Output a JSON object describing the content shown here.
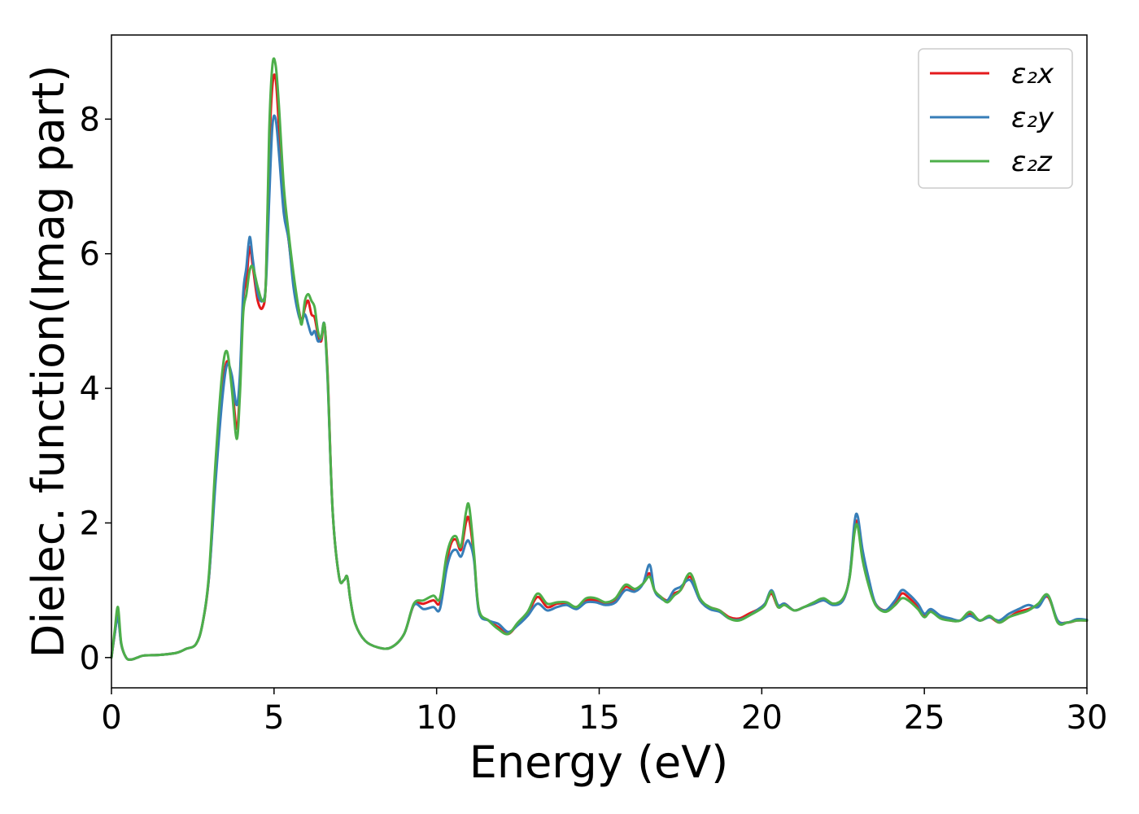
{
  "chart_data": {
    "type": "line",
    "title": "",
    "xlabel": "Energy (eV)",
    "ylabel": "Dielec. function(Imag part)",
    "xlim": [
      0,
      30
    ],
    "ylim": [
      -0.45,
      9.25
    ],
    "xticks": [
      0,
      5,
      10,
      15,
      20,
      25,
      30
    ],
    "yticks": [
      0,
      2,
      4,
      6,
      8
    ],
    "grid": false,
    "legend_position": "top-right",
    "series": [
      {
        "name": "ε₂x",
        "color": "#e41a1c",
        "x": [
          0,
          0.1,
          0.2,
          0.3,
          0.45,
          0.6,
          0.8,
          1.0,
          1.5,
          2.0,
          2.3,
          2.6,
          2.8,
          3.0,
          3.2,
          3.4,
          3.55,
          3.7,
          3.85,
          3.95,
          4.05,
          4.15,
          4.25,
          4.35,
          4.5,
          4.65,
          4.75,
          4.85,
          4.95,
          5.05,
          5.15,
          5.3,
          5.45,
          5.6,
          5.75,
          5.85,
          5.95,
          6.05,
          6.15,
          6.25,
          6.35,
          6.45,
          6.55,
          6.65,
          6.8,
          7.0,
          7.15,
          7.25,
          7.35,
          7.5,
          7.8,
          8.2,
          8.6,
          9.0,
          9.3,
          9.6,
          9.9,
          10.1,
          10.3,
          10.45,
          10.6,
          10.75,
          10.9,
          11.0,
          11.15,
          11.3,
          11.6,
          11.9,
          12.2,
          12.5,
          12.8,
          13.1,
          13.4,
          13.7,
          14.0,
          14.3,
          14.6,
          14.9,
          15.2,
          15.5,
          15.8,
          16.1,
          16.35,
          16.55,
          16.7,
          16.9,
          17.1,
          17.3,
          17.5,
          17.8,
          18.1,
          18.4,
          18.7,
          19.0,
          19.3,
          19.6,
          19.9,
          20.1,
          20.3,
          20.5,
          20.7,
          21.0,
          21.3,
          21.6,
          21.9,
          22.2,
          22.5,
          22.7,
          22.85,
          22.95,
          23.1,
          23.3,
          23.5,
          23.8,
          24.1,
          24.3,
          24.5,
          24.8,
          25.0,
          25.2,
          25.5,
          25.8,
          26.1,
          26.4,
          26.7,
          27.0,
          27.3,
          27.6,
          27.9,
          28.2,
          28.5,
          28.8,
          29.1,
          29.4,
          29.7,
          30.0
        ],
        "y": [
          0.0,
          0.35,
          0.65,
          0.2,
          0.0,
          -0.03,
          0.0,
          0.03,
          0.04,
          0.07,
          0.13,
          0.2,
          0.5,
          1.2,
          2.7,
          3.9,
          4.4,
          4.1,
          3.4,
          4.0,
          5.3,
          5.6,
          6.1,
          5.8,
          5.3,
          5.2,
          5.6,
          7.5,
          8.5,
          8.6,
          7.9,
          6.8,
          6.2,
          5.6,
          5.2,
          5.0,
          5.2,
          5.3,
          5.1,
          5.05,
          4.8,
          4.7,
          4.95,
          4.2,
          2.2,
          1.2,
          1.15,
          1.2,
          0.85,
          0.5,
          0.25,
          0.15,
          0.15,
          0.35,
          0.78,
          0.8,
          0.85,
          0.82,
          1.4,
          1.7,
          1.75,
          1.6,
          2.0,
          2.05,
          1.5,
          0.7,
          0.55,
          0.45,
          0.35,
          0.5,
          0.65,
          0.9,
          0.75,
          0.8,
          0.8,
          0.75,
          0.85,
          0.85,
          0.8,
          0.85,
          1.05,
          1.0,
          1.1,
          1.25,
          1.0,
          0.9,
          0.85,
          0.95,
          1.0,
          1.2,
          0.85,
          0.75,
          0.7,
          0.6,
          0.58,
          0.65,
          0.72,
          0.8,
          0.95,
          0.75,
          0.8,
          0.7,
          0.75,
          0.8,
          0.85,
          0.8,
          0.85,
          1.2,
          1.9,
          2.0,
          1.5,
          1.1,
          0.8,
          0.7,
          0.8,
          0.95,
          0.9,
          0.75,
          0.62,
          0.7,
          0.6,
          0.55,
          0.55,
          0.65,
          0.55,
          0.6,
          0.52,
          0.6,
          0.68,
          0.72,
          0.78,
          0.9,
          0.55,
          0.52,
          0.55,
          0.55
        ]
      },
      {
        "name": "ε₂y",
        "color": "#377eb8",
        "x": [
          0,
          0.1,
          0.2,
          0.3,
          0.45,
          0.6,
          0.8,
          1.0,
          1.5,
          2.0,
          2.3,
          2.6,
          2.8,
          3.0,
          3.2,
          3.4,
          3.55,
          3.7,
          3.85,
          3.95,
          4.05,
          4.15,
          4.25,
          4.35,
          4.5,
          4.65,
          4.75,
          4.85,
          4.95,
          5.05,
          5.15,
          5.3,
          5.45,
          5.6,
          5.75,
          5.85,
          5.95,
          6.05,
          6.15,
          6.25,
          6.35,
          6.45,
          6.55,
          6.65,
          6.8,
          7.0,
          7.15,
          7.25,
          7.35,
          7.5,
          7.8,
          8.2,
          8.6,
          9.0,
          9.3,
          9.6,
          9.9,
          10.1,
          10.3,
          10.45,
          10.6,
          10.75,
          10.9,
          11.0,
          11.15,
          11.3,
          11.6,
          11.9,
          12.2,
          12.5,
          12.8,
          13.1,
          13.4,
          13.7,
          14.0,
          14.3,
          14.6,
          14.9,
          15.2,
          15.5,
          15.8,
          16.1,
          16.35,
          16.55,
          16.7,
          16.9,
          17.1,
          17.3,
          17.5,
          17.8,
          18.1,
          18.4,
          18.7,
          19.0,
          19.3,
          19.6,
          19.9,
          20.1,
          20.3,
          20.5,
          20.7,
          21.0,
          21.3,
          21.6,
          21.9,
          22.2,
          22.5,
          22.7,
          22.85,
          22.95,
          23.1,
          23.3,
          23.5,
          23.8,
          24.1,
          24.3,
          24.5,
          24.8,
          25.0,
          25.2,
          25.5,
          25.8,
          26.1,
          26.4,
          26.7,
          27.0,
          27.3,
          27.6,
          27.9,
          28.2,
          28.5,
          28.8,
          29.1,
          29.4,
          29.7,
          30.0
        ],
        "y": [
          0.0,
          0.35,
          0.6,
          0.2,
          0.0,
          -0.03,
          0.0,
          0.03,
          0.04,
          0.07,
          0.13,
          0.2,
          0.5,
          1.2,
          2.6,
          3.8,
          4.35,
          4.2,
          3.75,
          4.2,
          5.4,
          5.8,
          6.25,
          5.9,
          5.4,
          5.3,
          5.55,
          6.8,
          7.9,
          8.0,
          7.5,
          6.6,
          6.2,
          5.5,
          5.1,
          5.0,
          5.1,
          4.95,
          4.8,
          4.85,
          4.7,
          4.75,
          4.95,
          4.1,
          2.2,
          1.2,
          1.15,
          1.2,
          0.85,
          0.5,
          0.25,
          0.15,
          0.15,
          0.35,
          0.78,
          0.72,
          0.75,
          0.72,
          1.3,
          1.55,
          1.6,
          1.5,
          1.7,
          1.72,
          1.45,
          0.68,
          0.55,
          0.5,
          0.38,
          0.48,
          0.62,
          0.8,
          0.7,
          0.75,
          0.78,
          0.72,
          0.82,
          0.82,
          0.78,
          0.82,
          1.0,
          0.98,
          1.1,
          1.38,
          1.0,
          0.88,
          0.85,
          1.0,
          1.05,
          1.15,
          0.85,
          0.72,
          0.68,
          0.58,
          0.56,
          0.62,
          0.72,
          0.8,
          1.0,
          0.78,
          0.8,
          0.7,
          0.75,
          0.8,
          0.85,
          0.78,
          0.85,
          1.2,
          2.0,
          2.1,
          1.6,
          1.15,
          0.8,
          0.7,
          0.85,
          1.0,
          0.95,
          0.8,
          0.65,
          0.72,
          0.62,
          0.58,
          0.55,
          0.62,
          0.55,
          0.6,
          0.55,
          0.65,
          0.72,
          0.78,
          0.75,
          0.92,
          0.55,
          0.52,
          0.57,
          0.56
        ]
      },
      {
        "name": "ε₂z",
        "color": "#4daf4a",
        "x": [
          0,
          0.1,
          0.2,
          0.3,
          0.45,
          0.6,
          0.8,
          1.0,
          1.5,
          2.0,
          2.3,
          2.6,
          2.8,
          3.0,
          3.2,
          3.4,
          3.55,
          3.7,
          3.85,
          3.95,
          4.05,
          4.15,
          4.25,
          4.35,
          4.5,
          4.65,
          4.75,
          4.85,
          4.95,
          5.05,
          5.15,
          5.3,
          5.45,
          5.6,
          5.75,
          5.85,
          5.95,
          6.05,
          6.15,
          6.25,
          6.35,
          6.45,
          6.55,
          6.65,
          6.8,
          7.0,
          7.15,
          7.25,
          7.35,
          7.5,
          7.8,
          8.2,
          8.6,
          9.0,
          9.3,
          9.6,
          9.9,
          10.1,
          10.3,
          10.45,
          10.6,
          10.75,
          10.9,
          11.0,
          11.15,
          11.3,
          11.6,
          11.9,
          12.2,
          12.5,
          12.8,
          13.1,
          13.4,
          13.7,
          14.0,
          14.3,
          14.6,
          14.9,
          15.2,
          15.5,
          15.8,
          16.1,
          16.35,
          16.55,
          16.7,
          16.9,
          17.1,
          17.3,
          17.5,
          17.8,
          18.1,
          18.4,
          18.7,
          19.0,
          19.3,
          19.6,
          19.9,
          20.1,
          20.3,
          20.5,
          20.7,
          21.0,
          21.3,
          21.6,
          21.9,
          22.2,
          22.5,
          22.7,
          22.85,
          22.95,
          23.1,
          23.3,
          23.5,
          23.8,
          24.1,
          24.3,
          24.5,
          24.8,
          25.0,
          25.2,
          25.5,
          25.8,
          26.1,
          26.4,
          26.7,
          27.0,
          27.3,
          27.6,
          27.9,
          28.2,
          28.5,
          28.8,
          29.1,
          29.4,
          29.7,
          30.0
        ],
        "y": [
          0.0,
          0.4,
          0.75,
          0.22,
          0.0,
          -0.03,
          0.0,
          0.03,
          0.04,
          0.07,
          0.13,
          0.2,
          0.5,
          1.25,
          2.9,
          4.2,
          4.55,
          4.0,
          3.25,
          3.9,
          5.1,
          5.4,
          5.75,
          5.8,
          5.5,
          5.3,
          5.6,
          7.8,
          8.8,
          8.8,
          8.2,
          7.0,
          6.3,
          5.7,
          5.2,
          4.95,
          5.3,
          5.4,
          5.3,
          5.2,
          4.85,
          4.75,
          4.95,
          4.15,
          2.2,
          1.2,
          1.15,
          1.2,
          0.85,
          0.5,
          0.25,
          0.15,
          0.15,
          0.35,
          0.8,
          0.85,
          0.92,
          0.88,
          1.5,
          1.75,
          1.8,
          1.65,
          2.15,
          2.25,
          1.55,
          0.72,
          0.55,
          0.42,
          0.35,
          0.52,
          0.68,
          0.95,
          0.8,
          0.82,
          0.82,
          0.75,
          0.88,
          0.88,
          0.82,
          0.88,
          1.08,
          1.02,
          1.1,
          1.2,
          1.0,
          0.9,
          0.82,
          0.92,
          1.0,
          1.25,
          0.88,
          0.75,
          0.7,
          0.58,
          0.55,
          0.62,
          0.7,
          0.78,
          0.98,
          0.75,
          0.78,
          0.7,
          0.75,
          0.82,
          0.88,
          0.8,
          0.88,
          1.18,
          1.85,
          1.95,
          1.45,
          1.05,
          0.78,
          0.68,
          0.78,
          0.88,
          0.85,
          0.72,
          0.6,
          0.68,
          0.58,
          0.55,
          0.55,
          0.68,
          0.55,
          0.62,
          0.52,
          0.6,
          0.65,
          0.7,
          0.8,
          0.93,
          0.52,
          0.52,
          0.55,
          0.55
        ]
      }
    ]
  }
}
